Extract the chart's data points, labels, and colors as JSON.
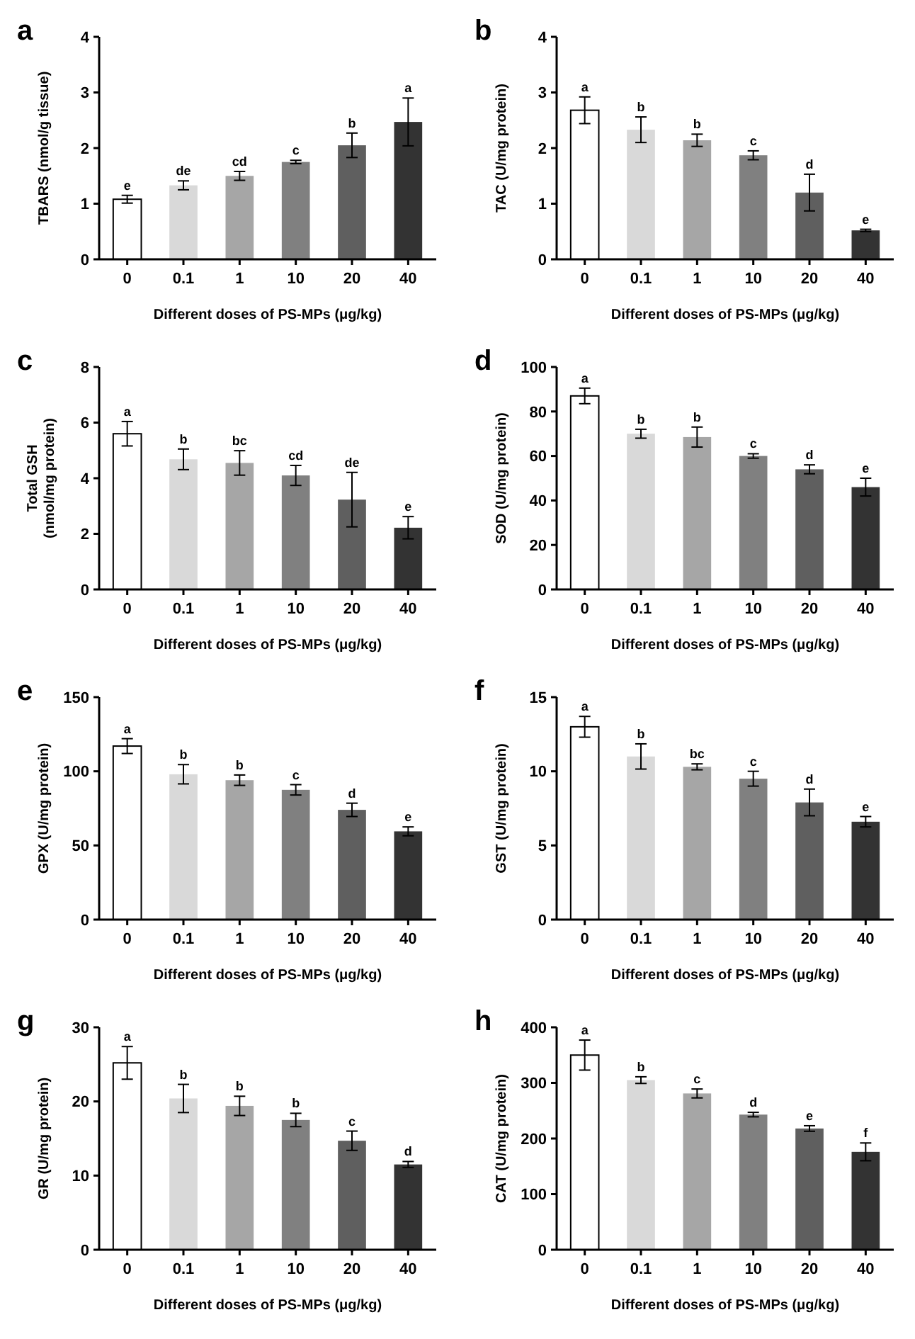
{
  "chart_data": [
    {
      "type": "bar",
      "title": "a",
      "xlabel": "Different doses of PS-MPs (μg/kg)",
      "ylabel": "TBARS (nmol/g tissue)",
      "categories": [
        "0",
        "0.1",
        "1",
        "10",
        "20",
        "40"
      ],
      "values": [
        1.08,
        1.33,
        1.5,
        1.75,
        2.05,
        2.47
      ],
      "errors": [
        0.07,
        0.08,
        0.08,
        0.03,
        0.22,
        0.43
      ],
      "colors": [
        "#ffffff",
        "#d9d9d9",
        "#a6a6a6",
        "#808080",
        "#5f5f5f",
        "#333333"
      ],
      "ylim": [
        0,
        4
      ],
      "yticks": [
        0,
        1,
        2,
        3,
        4
      ],
      "grid": false,
      "annotations": [
        {
          "text": "e",
          "x": "0",
          "y": 1.15
        },
        {
          "text": "de",
          "x": "0.1",
          "y": 1.41
        },
        {
          "text": "cd",
          "x": "1",
          "y": 1.58
        },
        {
          "text": "c",
          "x": "10",
          "y": 1.78
        },
        {
          "text": "b",
          "x": "20",
          "y": 2.27
        },
        {
          "text": "a",
          "x": "40",
          "y": 2.9
        }
      ]
    },
    {
      "type": "bar",
      "title": "b",
      "xlabel": "Different doses of PS-MPs (μg/kg)",
      "ylabel": "TAC (U/mg protein)",
      "categories": [
        "0",
        "0.1",
        "1",
        "10",
        "20",
        "40"
      ],
      "values": [
        2.68,
        2.33,
        2.14,
        1.87,
        1.2,
        0.52
      ],
      "errors": [
        0.24,
        0.23,
        0.11,
        0.08,
        0.33,
        0.02
      ],
      "colors": [
        "#ffffff",
        "#d9d9d9",
        "#a6a6a6",
        "#808080",
        "#5f5f5f",
        "#333333"
      ],
      "ylim": [
        0,
        4
      ],
      "yticks": [
        0,
        1,
        2,
        3,
        4
      ],
      "grid": false,
      "annotations": [
        {
          "text": "a",
          "x": "0",
          "y": 2.92
        },
        {
          "text": "b",
          "x": "0.1",
          "y": 2.56
        },
        {
          "text": "b",
          "x": "1",
          "y": 2.25
        },
        {
          "text": "c",
          "x": "10",
          "y": 1.95
        },
        {
          "text": "d",
          "x": "20",
          "y": 1.53
        },
        {
          "text": "e",
          "x": "40",
          "y": 0.54
        }
      ]
    },
    {
      "type": "bar",
      "title": "c",
      "xlabel": "Different doses of PS-MPs (μg/kg)",
      "ylabel": "Total GSH\n(nmol/mg protein)",
      "categories": [
        "0",
        "0.1",
        "1",
        "10",
        "20",
        "40"
      ],
      "values": [
        5.6,
        4.68,
        4.55,
        4.1,
        3.23,
        2.22
      ],
      "errors": [
        0.44,
        0.37,
        0.44,
        0.36,
        0.98,
        0.4
      ],
      "colors": [
        "#ffffff",
        "#d9d9d9",
        "#a6a6a6",
        "#808080",
        "#5f5f5f",
        "#333333"
      ],
      "ylim": [
        0,
        8
      ],
      "yticks": [
        0,
        2,
        4,
        6,
        8
      ],
      "grid": false,
      "annotations": [
        {
          "text": "a",
          "x": "0",
          "y": 6.04
        },
        {
          "text": "b",
          "x": "0.1",
          "y": 5.05
        },
        {
          "text": "bc",
          "x": "1",
          "y": 4.99
        },
        {
          "text": "cd",
          "x": "10",
          "y": 4.46
        },
        {
          "text": "de",
          "x": "20",
          "y": 4.21
        },
        {
          "text": "e",
          "x": "40",
          "y": 2.62
        }
      ]
    },
    {
      "type": "bar",
      "title": "d",
      "xlabel": "Different doses of PS-MPs (μg/kg)",
      "ylabel": "SOD (U/mg protein)",
      "categories": [
        "0",
        "0.1",
        "1",
        "10",
        "20",
        "40"
      ],
      "values": [
        87,
        70,
        68.5,
        60,
        54,
        46
      ],
      "errors": [
        3.5,
        2,
        4.5,
        1,
        2,
        4
      ],
      "colors": [
        "#ffffff",
        "#d9d9d9",
        "#a6a6a6",
        "#808080",
        "#5f5f5f",
        "#333333"
      ],
      "ylim": [
        0,
        100
      ],
      "yticks": [
        0,
        20,
        40,
        60,
        80,
        100
      ],
      "grid": false,
      "annotations": [
        {
          "text": "a",
          "x": "0",
          "y": 90.5
        },
        {
          "text": "b",
          "x": "0.1",
          "y": 72
        },
        {
          "text": "b",
          "x": "1",
          "y": 73
        },
        {
          "text": "c",
          "x": "10",
          "y": 61
        },
        {
          "text": "d",
          "x": "20",
          "y": 56
        },
        {
          "text": "e",
          "x": "40",
          "y": 50
        }
      ]
    },
    {
      "type": "bar",
      "title": "e",
      "xlabel": "Different doses of PS-MPs (μg/kg)",
      "ylabel": "GPX (U/mg protein)",
      "categories": [
        "0",
        "0.1",
        "1",
        "10",
        "20",
        "40"
      ],
      "values": [
        117,
        98,
        94,
        87.5,
        74,
        59.5
      ],
      "errors": [
        5,
        6.5,
        3.5,
        3.5,
        4.5,
        3
      ],
      "colors": [
        "#ffffff",
        "#d9d9d9",
        "#a6a6a6",
        "#808080",
        "#5f5f5f",
        "#333333"
      ],
      "ylim": [
        0,
        150
      ],
      "yticks": [
        0,
        50,
        100,
        150
      ],
      "grid": false,
      "annotations": [
        {
          "text": "a",
          "x": "0",
          "y": 122
        },
        {
          "text": "b",
          "x": "0.1",
          "y": 104.5
        },
        {
          "text": "b",
          "x": "1",
          "y": 97.5
        },
        {
          "text": "c",
          "x": "10",
          "y": 91
        },
        {
          "text": "d",
          "x": "20",
          "y": 78.5
        },
        {
          "text": "e",
          "x": "40",
          "y": 62.5
        }
      ]
    },
    {
      "type": "bar",
      "title": "f",
      "xlabel": "Different doses of PS-MPs (μg/kg)",
      "ylabel": "GST (U/mg protein)",
      "categories": [
        "0",
        "0.1",
        "1",
        "10",
        "20",
        "40"
      ],
      "values": [
        13,
        11,
        10.3,
        9.5,
        7.9,
        6.6
      ],
      "errors": [
        0.7,
        0.85,
        0.2,
        0.5,
        0.9,
        0.35
      ],
      "colors": [
        "#ffffff",
        "#d9d9d9",
        "#a6a6a6",
        "#808080",
        "#5f5f5f",
        "#333333"
      ],
      "ylim": [
        0,
        15
      ],
      "yticks": [
        0,
        5,
        10,
        15
      ],
      "grid": false,
      "annotations": [
        {
          "text": "a",
          "x": "0",
          "y": 13.7
        },
        {
          "text": "b",
          "x": "0.1",
          "y": 11.85
        },
        {
          "text": "bc",
          "x": "1",
          "y": 10.5
        },
        {
          "text": "c",
          "x": "10",
          "y": 10
        },
        {
          "text": "d",
          "x": "20",
          "y": 8.8
        },
        {
          "text": "e",
          "x": "40",
          "y": 6.95
        }
      ]
    },
    {
      "type": "bar",
      "title": "g",
      "xlabel": "Different doses of PS-MPs (μg/kg)",
      "ylabel": "GR (U/mg protein)",
      "categories": [
        "0",
        "0.1",
        "1",
        "10",
        "20",
        "40"
      ],
      "values": [
        25.2,
        20.4,
        19.4,
        17.5,
        14.7,
        11.5
      ],
      "errors": [
        2.2,
        1.9,
        1.3,
        0.9,
        1.3,
        0.4
      ],
      "colors": [
        "#ffffff",
        "#d9d9d9",
        "#a6a6a6",
        "#808080",
        "#5f5f5f",
        "#333333"
      ],
      "ylim": [
        0,
        30
      ],
      "yticks": [
        0,
        10,
        20,
        30
      ],
      "grid": false,
      "annotations": [
        {
          "text": "a",
          "x": "0",
          "y": 27.4
        },
        {
          "text": "b",
          "x": "0.1",
          "y": 22.3
        },
        {
          "text": "b",
          "x": "1",
          "y": 20.7
        },
        {
          "text": "b",
          "x": "10",
          "y": 18.4
        },
        {
          "text": "c",
          "x": "20",
          "y": 16
        },
        {
          "text": "d",
          "x": "40",
          "y": 11.9
        }
      ]
    },
    {
      "type": "bar",
      "title": "h",
      "xlabel": "Different doses of PS-MPs (μg/kg)",
      "ylabel": "CAT (U/mg protein)",
      "categories": [
        "0",
        "0.1",
        "1",
        "10",
        "20",
        "40"
      ],
      "values": [
        350,
        305,
        281,
        243,
        218,
        176
      ],
      "errors": [
        27,
        6,
        8,
        4,
        5,
        16
      ],
      "colors": [
        "#ffffff",
        "#d9d9d9",
        "#a6a6a6",
        "#808080",
        "#5f5f5f",
        "#333333"
      ],
      "ylim": [
        0,
        400
      ],
      "yticks": [
        0,
        100,
        200,
        300,
        400
      ],
      "grid": false,
      "annotations": [
        {
          "text": "a",
          "x": "0",
          "y": 377
        },
        {
          "text": "b",
          "x": "0.1",
          "y": 311
        },
        {
          "text": "c",
          "x": "1",
          "y": 289
        },
        {
          "text": "d",
          "x": "10",
          "y": 247
        },
        {
          "text": "e",
          "x": "20",
          "y": 223
        },
        {
          "text": "f",
          "x": "40",
          "y": 192
        }
      ]
    }
  ]
}
